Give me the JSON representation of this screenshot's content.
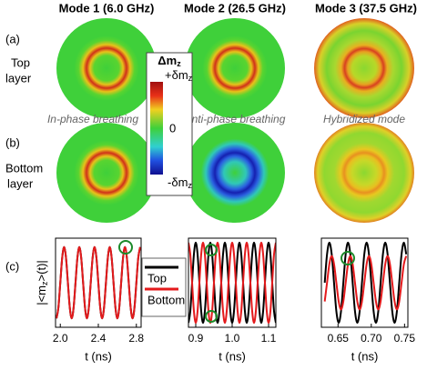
{
  "figure": {
    "column_titles": [
      "Mode 1 (6.0 GHz)",
      "Mode 2 (26.5 GHz)",
      "Mode 3 (37.5 GHz)"
    ],
    "panel_labels": [
      "(a)",
      "(b)",
      "(c)"
    ],
    "row_labels": [
      [
        "Top",
        "layer"
      ],
      [
        "Bottom",
        "layer"
      ]
    ],
    "captions": [
      "In-phase breathing",
      "Anti-phase breathing",
      "Hybridized mode"
    ],
    "colorbar": {
      "title": {
        "text": "Δm",
        "sub": "z"
      },
      "max": {
        "text": "+δm",
        "sub": "z"
      },
      "zero": "0",
      "min": {
        "text": "-δm",
        "sub": "z"
      }
    }
  },
  "chart_data": [
    {
      "type": "line",
      "xlabel": "t (ns)",
      "ylabel": {
        "text": "|<m",
        "sub": "z",
        "after": ">(t)|"
      },
      "xlim": [
        1.95,
        2.85
      ],
      "xticks": [
        {
          "value": 2.0,
          "label": "2.0"
        },
        2.4,
        2.8
      ],
      "ylim": [
        0,
        1
      ],
      "x": [
        1.96,
        1.98,
        2,
        2.02,
        2.04,
        2.06,
        2.08,
        2.1,
        2.12,
        2.14,
        2.16,
        2.18,
        2.2,
        2.22,
        2.24,
        2.26,
        2.28,
        2.3,
        2.32,
        2.34,
        2.36,
        2.38,
        2.4,
        2.42,
        2.44,
        2.46,
        2.48,
        2.5,
        2.52,
        2.54,
        2.56,
        2.58,
        2.6,
        2.62,
        2.64,
        2.66,
        2.68,
        2.7,
        2.72,
        2.74,
        2.76,
        2.78,
        2.8,
        2.82,
        2.84
      ],
      "series": [
        {
          "color": "#000000",
          "values": [
            0.1,
            0.22,
            0.5,
            0.78,
            0.9,
            0.78,
            0.5,
            0.22,
            0.1,
            0.22,
            0.5,
            0.78,
            0.9,
            0.78,
            0.5,
            0.22,
            0.1,
            0.22,
            0.5,
            0.78,
            0.9,
            0.78,
            0.5,
            0.22,
            0.1,
            0.22,
            0.5,
            0.78,
            0.9,
            0.78,
            0.5,
            0.22,
            0.1,
            0.22,
            0.5,
            0.78,
            0.9,
            0.78,
            0.5,
            0.22,
            0.1,
            0.22,
            0.5,
            0.78,
            0.9
          ]
        },
        {
          "color": "#e41a1c",
          "values": [
            0.1,
            0.22,
            0.5,
            0.78,
            0.9,
            0.78,
            0.5,
            0.22,
            0.1,
            0.22,
            0.5,
            0.78,
            0.9,
            0.78,
            0.5,
            0.22,
            0.1,
            0.22,
            0.5,
            0.78,
            0.9,
            0.78,
            0.5,
            0.22,
            0.1,
            0.22,
            0.5,
            0.78,
            0.9,
            0.78,
            0.5,
            0.22,
            0.1,
            0.22,
            0.5,
            0.78,
            0.9,
            0.78,
            0.5,
            0.22,
            0.1,
            0.22,
            0.5,
            0.78,
            0.9
          ]
        }
      ]
    },
    {
      "type": "line",
      "xlabel": "t (ns)",
      "xlim": [
        0.88,
        1.12
      ],
      "xticks": [
        0.9,
        {
          "value": 1.0,
          "label": "1.0"
        },
        1.1
      ],
      "ylim": [
        0,
        1
      ],
      "x": [
        0.88,
        0.885,
        0.89,
        0.895,
        0.9,
        0.905,
        0.91,
        0.915,
        0.92,
        0.925,
        0.93,
        0.935,
        0.94,
        0.945,
        0.95,
        0.955,
        0.96,
        0.965,
        0.97,
        0.975,
        0.98,
        0.985,
        0.99,
        0.995,
        1,
        1.005,
        1.01,
        1.015,
        1.02,
        1.025,
        1.03,
        1.035,
        1.04,
        1.045,
        1.05,
        1.055,
        1.06,
        1.065,
        1.07,
        1.075,
        1.08,
        1.085,
        1.09,
        1.095,
        1.1,
        1.105,
        1.11,
        1.115,
        1.12
      ],
      "series": [
        {
          "name": "Top",
          "color": "#000000",
          "values": [
            0.05,
            0.18,
            0.5,
            0.82,
            0.95,
            0.82,
            0.5,
            0.18,
            0.05,
            0.18,
            0.5,
            0.82,
            0.95,
            0.82,
            0.5,
            0.18,
            0.05,
            0.18,
            0.5,
            0.82,
            0.95,
            0.82,
            0.5,
            0.18,
            0.05,
            0.18,
            0.5,
            0.82,
            0.95,
            0.82,
            0.5,
            0.18,
            0.05,
            0.18,
            0.5,
            0.82,
            0.95,
            0.82,
            0.5,
            0.18,
            0.05,
            0.18,
            0.5,
            0.82,
            0.95,
            0.82,
            0.5,
            0.18,
            0.05
          ]
        },
        {
          "name": "Bottom",
          "color": "#e41a1c",
          "values": [
            0.95,
            0.82,
            0.5,
            0.18,
            0.05,
            0.18,
            0.5,
            0.82,
            0.95,
            0.82,
            0.5,
            0.18,
            0.05,
            0.18,
            0.5,
            0.82,
            0.95,
            0.82,
            0.5,
            0.18,
            0.05,
            0.18,
            0.5,
            0.82,
            0.95,
            0.82,
            0.5,
            0.18,
            0.05,
            0.18,
            0.5,
            0.82,
            0.95,
            0.82,
            0.5,
            0.18,
            0.05,
            0.18,
            0.5,
            0.82,
            0.95,
            0.82,
            0.5,
            0.18,
            0.05,
            0.18,
            0.5,
            0.82,
            0.95
          ]
        }
      ]
    },
    {
      "type": "line",
      "xlabel": "t (ns)",
      "xlim": [
        0.625,
        0.755
      ],
      "xticks": [
        0.65,
        {
          "value": 0.7,
          "label": "0.70"
        },
        0.75
      ],
      "ylim": [
        0,
        1
      ],
      "x": [
        0.63,
        0.6335,
        0.637,
        0.6405,
        0.644,
        0.6475,
        0.651,
        0.6545,
        0.658,
        0.6615,
        0.665,
        0.6685,
        0.672,
        0.6755,
        0.679,
        0.6825,
        0.686,
        0.6895,
        0.693,
        0.6965,
        0.7,
        0.7035,
        0.707,
        0.7105,
        0.714,
        0.7175,
        0.721,
        0.7245,
        0.728,
        0.7315,
        0.735,
        0.7385,
        0.742,
        0.7455,
        0.749,
        0.7525
      ],
      "series": [
        {
          "color": "#000000",
          "values": [
            0.5,
            0.82,
            0.95,
            0.82,
            0.5,
            0.18,
            0.05,
            0.18,
            0.5,
            0.82,
            0.95,
            0.82,
            0.5,
            0.18,
            0.05,
            0.18,
            0.5,
            0.82,
            0.95,
            0.82,
            0.5,
            0.18,
            0.05,
            0.18,
            0.5,
            0.82,
            0.95,
            0.82,
            0.5,
            0.18,
            0.05,
            0.18,
            0.5,
            0.82,
            0.95,
            0.82
          ]
        },
        {
          "color": "#e41a1c",
          "values": [
            0.29,
            0.5,
            0.71,
            0.8,
            0.71,
            0.5,
            0.29,
            0.2,
            0.29,
            0.5,
            0.71,
            0.8,
            0.71,
            0.5,
            0.29,
            0.2,
            0.29,
            0.5,
            0.71,
            0.8,
            0.71,
            0.5,
            0.29,
            0.2,
            0.29,
            0.5,
            0.71,
            0.8,
            0.71,
            0.5,
            0.29,
            0.2,
            0.29,
            0.5,
            0.71,
            0.8
          ]
        }
      ]
    }
  ]
}
